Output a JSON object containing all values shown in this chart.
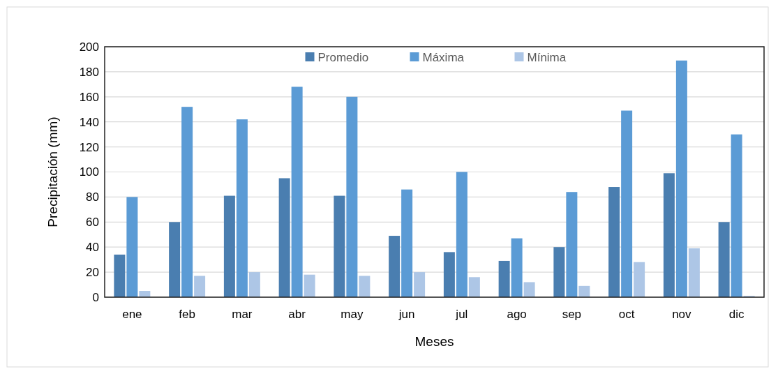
{
  "chart_data": {
    "type": "bar",
    "xlabel": "Meses",
    "ylabel": "Precipitación (mm)",
    "categories": [
      "ene",
      "feb",
      "mar",
      "abr",
      "may",
      "jun",
      "jul",
      "ago",
      "sep",
      "oct",
      "nov",
      "dic"
    ],
    "series": [
      {
        "name": "Promedio",
        "color": "#4a7eb0",
        "values": [
          34,
          60,
          81,
          95,
          81,
          49,
          36,
          29,
          40,
          88,
          99,
          60
        ]
      },
      {
        "name": "Máxima",
        "color": "#5b9bd5",
        "values": [
          80,
          152,
          142,
          168,
          160,
          86,
          100,
          47,
          84,
          149,
          189,
          130
        ]
      },
      {
        "name": "Mínima",
        "color": "#adc6e6",
        "values": [
          5,
          17,
          20,
          18,
          17,
          20,
          16,
          12,
          9,
          28,
          39,
          1
        ]
      }
    ],
    "ylim": [
      0,
      200
    ],
    "yticks": [
      0,
      20,
      40,
      60,
      80,
      100,
      120,
      140,
      160,
      180,
      200
    ],
    "grid": "y",
    "legend": "top"
  }
}
